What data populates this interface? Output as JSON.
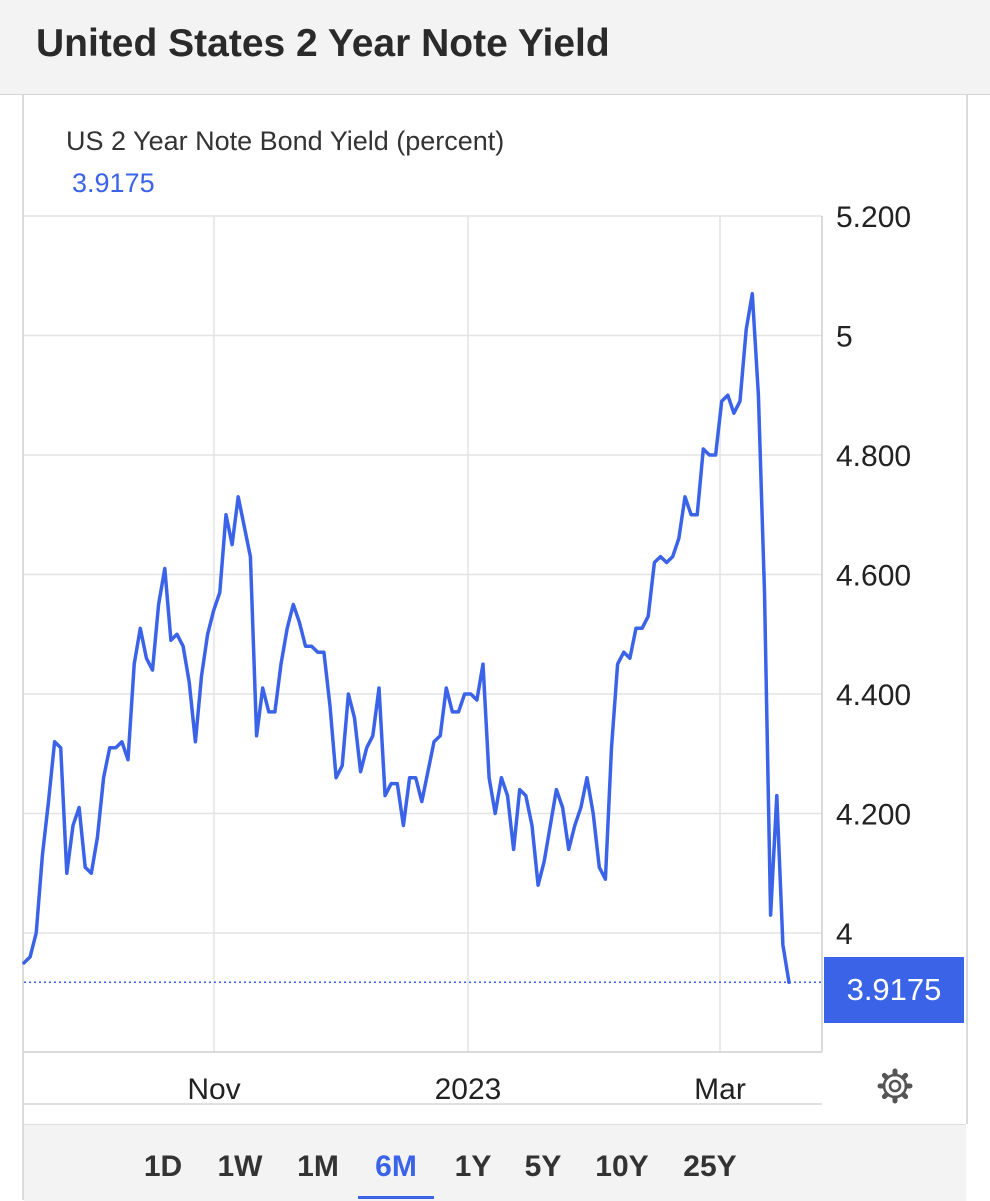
{
  "page": {
    "title": "United States 2 Year Note Yield"
  },
  "chart_data": {
    "type": "line",
    "title": "US 2 Year Note Bond Yield (percent)",
    "current_value": "3.9175",
    "y_tick_labels": [
      "5.200",
      "5",
      "4.800",
      "4.600",
      "4.400",
      "4.200",
      "4"
    ],
    "y_ticks": [
      5.2,
      5.0,
      4.8,
      4.6,
      4.4,
      4.2,
      4.0
    ],
    "ylim": [
      3.8,
      5.2
    ],
    "x_tick_labels": [
      "Nov",
      "2023",
      "Mar"
    ],
    "grid": true,
    "colors": {
      "line": "#3b63e8"
    },
    "series": [
      {
        "values": [
          3.95,
          3.96,
          4.0,
          4.13,
          4.22,
          4.32,
          4.31,
          4.1,
          4.18,
          4.21,
          4.11,
          4.1,
          4.16,
          4.26,
          4.31,
          4.31,
          4.32,
          4.29,
          4.45,
          4.51,
          4.46,
          4.44,
          4.55,
          4.61,
          4.49,
          4.5,
          4.48,
          4.42,
          4.32,
          4.43,
          4.5,
          4.54,
          4.57,
          4.7,
          4.65,
          4.73,
          4.68,
          4.63,
          4.33,
          4.41,
          4.37,
          4.37,
          4.45,
          4.51,
          4.55,
          4.52,
          4.48,
          4.48,
          4.47,
          4.47,
          4.38,
          4.26,
          4.28,
          4.4,
          4.36,
          4.27,
          4.31,
          4.33,
          4.41,
          4.23,
          4.25,
          4.25,
          4.18,
          4.26,
          4.26,
          4.22,
          4.27,
          4.32,
          4.33,
          4.41,
          4.37,
          4.37,
          4.4,
          4.4,
          4.39,
          4.45,
          4.26,
          4.2,
          4.26,
          4.23,
          4.14,
          4.24,
          4.23,
          4.18,
          4.08,
          4.12,
          4.18,
          4.24,
          4.21,
          4.14,
          4.18,
          4.21,
          4.26,
          4.2,
          4.11,
          4.09,
          4.31,
          4.45,
          4.47,
          4.46,
          4.51,
          4.51,
          4.53,
          4.62,
          4.63,
          4.62,
          4.63,
          4.66,
          4.73,
          4.7,
          4.7,
          4.81,
          4.8,
          4.8,
          4.89,
          4.9,
          4.87,
          4.89,
          5.01,
          5.07,
          4.9,
          4.57,
          4.03,
          4.23,
          3.98,
          3.9175
        ]
      }
    ]
  },
  "range_buttons": {
    "items": [
      "1D",
      "1W",
      "1M",
      "6M",
      "1Y",
      "5Y",
      "10Y",
      "25Y"
    ],
    "active": "6M"
  },
  "icons": {
    "settings": "gear-icon"
  }
}
